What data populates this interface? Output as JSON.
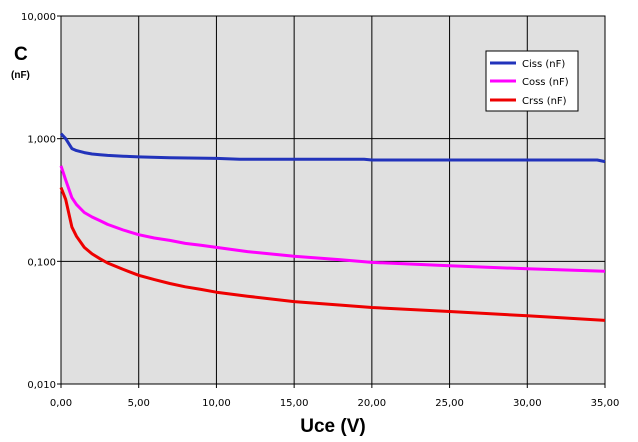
{
  "chart_data": {
    "type": "line",
    "title": "",
    "xlabel": "Uce (V)",
    "ylabel": "C",
    "yunit": "(nF)",
    "xlim": [
      0,
      35
    ],
    "ylim": [
      0.01,
      10
    ],
    "yscale": "log",
    "grid": true,
    "legend_position": "top-right",
    "x_ticks": [
      "0,00",
      "5,00",
      "10,00",
      "15,00",
      "20,00",
      "25,00",
      "30,00",
      "35,00"
    ],
    "y_ticks": [
      "10,000",
      "1,000",
      "0,100",
      "0,010"
    ],
    "colors": {
      "plot_bg": "#e0e0e0",
      "grid": "#000000"
    },
    "series": [
      {
        "name": "Ciss (nF)",
        "color": "#2233bb",
        "x": [
          0,
          0.3,
          0.7,
          1,
          1.5,
          2,
          2.5,
          3,
          4,
          5,
          7,
          10,
          11.5,
          15,
          19.5,
          20,
          25,
          30,
          34.5,
          35
        ],
        "y": [
          1.1,
          1.0,
          0.83,
          0.8,
          0.77,
          0.75,
          0.74,
          0.73,
          0.72,
          0.71,
          0.7,
          0.69,
          0.68,
          0.68,
          0.68,
          0.67,
          0.67,
          0.67,
          0.67,
          0.65
        ]
      },
      {
        "name": "Coss (nF)",
        "color": "#ff00ff",
        "x": [
          0,
          0.3,
          0.7,
          1,
          1.5,
          2,
          2.5,
          3,
          4,
          5,
          6,
          7,
          8,
          9,
          10,
          12,
          15,
          18,
          20,
          25,
          30,
          35
        ],
        "y": [
          0.6,
          0.46,
          0.33,
          0.29,
          0.25,
          0.23,
          0.215,
          0.2,
          0.18,
          0.165,
          0.155,
          0.148,
          0.14,
          0.135,
          0.13,
          0.12,
          0.11,
          0.103,
          0.098,
          0.092,
          0.087,
          0.083
        ]
      },
      {
        "name": "Crss (nF)",
        "color": "#ee0000",
        "x": [
          0,
          0.3,
          0.7,
          1,
          1.5,
          2,
          2.5,
          3,
          4,
          5,
          6,
          7,
          8,
          9,
          10,
          12,
          15,
          18,
          20,
          25,
          30,
          35
        ],
        "y": [
          0.4,
          0.32,
          0.19,
          0.16,
          0.13,
          0.115,
          0.105,
          0.097,
          0.086,
          0.077,
          0.071,
          0.066,
          0.062,
          0.059,
          0.056,
          0.052,
          0.047,
          0.044,
          0.042,
          0.039,
          0.036,
          0.033
        ]
      }
    ]
  }
}
